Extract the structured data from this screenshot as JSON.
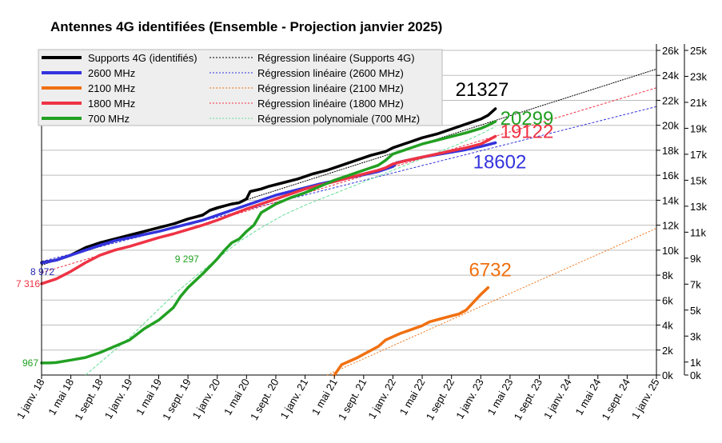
{
  "chart_data": {
    "type": "line",
    "title": "Antennes 4G identifiées (Ensemble - Projection janvier 2025)",
    "x_ticks": [
      "1 janv. 18",
      "1 mai 18",
      "1 sept. 18",
      "1 janv. 19",
      "1 mai 19",
      "1 sept. 19",
      "1 janv. 20",
      "1 mai 20",
      "1 sept. 20",
      "1 janv. 21",
      "1 mai 21",
      "1 sept. 21",
      "1 janv. 22",
      "1 mai 22",
      "1 sept. 22",
      "1 janv. 23",
      "1 mai 23",
      "1 sept. 23",
      "1 janv. 24",
      "1 mai 24",
      "1 sept. 24",
      "1 janv. 25"
    ],
    "xlim_months": [
      0,
      84
    ],
    "y_left": {
      "ticks": [
        "0k",
        "2k",
        "4k",
        "6k",
        "8k",
        "10k",
        "12k",
        "14k",
        "16k",
        "18k",
        "20k",
        "22k",
        "24k",
        "26k"
      ],
      "ylim": [
        0,
        26000
      ]
    },
    "y_right": {
      "ticks": [
        "0k",
        "1k",
        "3k",
        "5k",
        "7k",
        "9k",
        "11k",
        "13k",
        "15k",
        "17k",
        "19k",
        "21k",
        "23k",
        "25k"
      ],
      "ylim": [
        0,
        25000
      ]
    },
    "grid": "horizontal",
    "legend_position": "top-left",
    "colors": {
      "supports": "#000000",
      "b2600": "#3333dd",
      "b2100": "#f07010",
      "b1800": "#ee3344",
      "b700": "#22a022",
      "reg_2600": "#3333dd",
      "reg_2100": "#f07010",
      "reg_1800": "#ee3344"
    },
    "series": [
      {
        "key": "supports",
        "name": "Supports 4G (identifiés)",
        "axis": "left",
        "color": "#000000",
        "points": [
          [
            0,
            9000
          ],
          [
            2,
            9200
          ],
          [
            4,
            9600
          ],
          [
            6,
            10200
          ],
          [
            8,
            10600
          ],
          [
            10,
            10900
          ],
          [
            12,
            11200
          ],
          [
            14,
            11500
          ],
          [
            16,
            11800
          ],
          [
            18,
            12100
          ],
          [
            20,
            12500
          ],
          [
            22,
            12800
          ],
          [
            23,
            13200
          ],
          [
            24,
            13400
          ],
          [
            25,
            13550
          ],
          [
            26,
            13700
          ],
          [
            27,
            13800
          ],
          [
            28,
            14100
          ],
          [
            28.5,
            14700
          ],
          [
            30,
            14900
          ],
          [
            31,
            15100
          ],
          [
            33,
            15400
          ],
          [
            35,
            15700
          ],
          [
            37,
            16100
          ],
          [
            39,
            16400
          ],
          [
            41,
            16800
          ],
          [
            43,
            17200
          ],
          [
            45,
            17600
          ],
          [
            47,
            17900
          ],
          [
            48,
            18200
          ],
          [
            50,
            18600
          ],
          [
            52,
            19000
          ],
          [
            54,
            19300
          ],
          [
            56,
            19700
          ],
          [
            58,
            20100
          ],
          [
            60,
            20500
          ],
          [
            61,
            20800
          ],
          [
            62,
            21327
          ]
        ]
      },
      {
        "key": "b2600",
        "name": "2600 MHz",
        "axis": "left",
        "color": "#3333dd",
        "points": [
          [
            0,
            8972
          ],
          [
            2,
            9200
          ],
          [
            4,
            9600
          ],
          [
            6,
            10000
          ],
          [
            8,
            10400
          ],
          [
            10,
            10750
          ],
          [
            12,
            11000
          ],
          [
            14,
            11250
          ],
          [
            16,
            11500
          ],
          [
            18,
            11800
          ],
          [
            20,
            12100
          ],
          [
            22,
            12400
          ],
          [
            24,
            12800
          ],
          [
            26,
            13200
          ],
          [
            28,
            13600
          ],
          [
            30,
            14000
          ],
          [
            32,
            14400
          ],
          [
            34,
            14700
          ],
          [
            36,
            15000
          ],
          [
            38,
            15300
          ],
          [
            40,
            15550
          ],
          [
            42,
            15800
          ],
          [
            44,
            16050
          ],
          [
            46,
            16300
          ],
          [
            47,
            16500
          ],
          [
            48,
            16700
          ],
          [
            48.5,
            17000
          ],
          [
            50,
            17200
          ],
          [
            52,
            17450
          ],
          [
            54,
            17650
          ],
          [
            56,
            17850
          ],
          [
            58,
            18050
          ],
          [
            60,
            18300
          ],
          [
            61,
            18450
          ],
          [
            62,
            18602
          ]
        ]
      },
      {
        "key": "b2100",
        "name": "2100 MHz",
        "axis": "right",
        "color": "#f07010",
        "points": [
          [
            40,
            0
          ],
          [
            41,
            800
          ],
          [
            43,
            1300
          ],
          [
            44,
            1600
          ],
          [
            46,
            2200
          ],
          [
            47,
            2700
          ],
          [
            49,
            3200
          ],
          [
            50,
            3400
          ],
          [
            52,
            3800
          ],
          [
            53,
            4100
          ],
          [
            55,
            4400
          ],
          [
            57,
            4700
          ],
          [
            58,
            5000
          ],
          [
            59,
            5600
          ],
          [
            60,
            6200
          ],
          [
            61,
            6732
          ]
        ]
      },
      {
        "key": "b1800",
        "name": "1800 MHz",
        "axis": "left",
        "color": "#ee3344",
        "points": [
          [
            0,
            7316
          ],
          [
            2,
            7700
          ],
          [
            4,
            8300
          ],
          [
            6,
            9000
          ],
          [
            8,
            9600
          ],
          [
            10,
            10000
          ],
          [
            12,
            10300
          ],
          [
            14,
            10650
          ],
          [
            16,
            11000
          ],
          [
            18,
            11300
          ],
          [
            20,
            11650
          ],
          [
            22,
            12000
          ],
          [
            24,
            12400
          ],
          [
            26,
            12850
          ],
          [
            28,
            13300
          ],
          [
            30,
            13700
          ],
          [
            32,
            14100
          ],
          [
            34,
            14500
          ],
          [
            36,
            14900
          ],
          [
            38,
            15200
          ],
          [
            40,
            15500
          ],
          [
            42,
            15800
          ],
          [
            44,
            16100
          ],
          [
            46,
            16400
          ],
          [
            47,
            16600
          ],
          [
            48,
            16900
          ],
          [
            50,
            17200
          ],
          [
            52,
            17450
          ],
          [
            54,
            17700
          ],
          [
            56,
            17950
          ],
          [
            58,
            18200
          ],
          [
            60,
            18500
          ],
          [
            61,
            18800
          ],
          [
            62,
            19122
          ]
        ]
      },
      {
        "key": "b700",
        "name": "700 MHz",
        "axis": "left",
        "color": "#22a022",
        "points": [
          [
            0,
            967
          ],
          [
            1,
            967
          ],
          [
            2,
            1000
          ],
          [
            4,
            1200
          ],
          [
            6,
            1400
          ],
          [
            8,
            1800
          ],
          [
            10,
            2300
          ],
          [
            12,
            2800
          ],
          [
            14,
            3700
          ],
          [
            16,
            4400
          ],
          [
            18,
            5400
          ],
          [
            19,
            6300
          ],
          [
            20,
            7000
          ],
          [
            22,
            8100
          ],
          [
            23,
            8700
          ],
          [
            24,
            9297
          ],
          [
            25,
            10000
          ],
          [
            26,
            10600
          ],
          [
            27,
            10900
          ],
          [
            28,
            11500
          ],
          [
            29,
            12000
          ],
          [
            30,
            13000
          ],
          [
            32,
            13700
          ],
          [
            34,
            14200
          ],
          [
            36,
            14600
          ],
          [
            38,
            15100
          ],
          [
            40,
            15600
          ],
          [
            42,
            16000
          ],
          [
            44,
            16400
          ],
          [
            46,
            16800
          ],
          [
            47,
            17200
          ],
          [
            48,
            17700
          ],
          [
            50,
            18100
          ],
          [
            52,
            18500
          ],
          [
            54,
            18800
          ],
          [
            56,
            19100
          ],
          [
            58,
            19400
          ],
          [
            60,
            19750
          ],
          [
            61,
            20000
          ],
          [
            62,
            20299
          ]
        ]
      }
    ],
    "regressions": [
      {
        "key": "reg_supports",
        "name": "Régression linéaire (Supports 4G)",
        "axis": "left",
        "color": "#000000",
        "dash": "2,1",
        "points": [
          [
            0,
            8800
          ],
          [
            84,
            24500
          ]
        ]
      },
      {
        "key": "reg_2600",
        "name": "Régression linéaire (2600 MHz)",
        "axis": "left",
        "color": "#3333dd",
        "dash": "3,2",
        "points": [
          [
            0,
            9100
          ],
          [
            84,
            21500
          ]
        ]
      },
      {
        "key": "reg_2100",
        "name": "Régression linéaire (2100 MHz)",
        "axis": "right",
        "color": "#f07010",
        "dash": "2,2",
        "points": [
          [
            39,
            0
          ],
          [
            84,
            11300
          ]
        ]
      },
      {
        "key": "reg_1800",
        "name": "Régression linéaire (1800 MHz)",
        "axis": "left",
        "color": "#ee3344",
        "dash": "3,2",
        "points": [
          [
            0,
            8200
          ],
          [
            84,
            23000
          ]
        ]
      },
      {
        "key": "reg_700",
        "name": "Régression polynomiale (700 MHz)",
        "axis": "left",
        "color": "#66dd99",
        "dash": "4,2",
        "points": [
          [
            6,
            0
          ],
          [
            9,
            1500
          ],
          [
            12,
            3000
          ],
          [
            15,
            4700
          ],
          [
            18,
            6400
          ],
          [
            21,
            7900
          ],
          [
            24,
            9300
          ],
          [
            27,
            10700
          ],
          [
            30,
            11800
          ],
          [
            33,
            12800
          ],
          [
            36,
            13600
          ],
          [
            39,
            14300
          ],
          [
            42,
            15000
          ],
          [
            45,
            15700
          ],
          [
            48,
            16400
          ],
          [
            51,
            17100
          ],
          [
            54,
            17800
          ],
          [
            57,
            18500
          ],
          [
            60,
            19300
          ],
          [
            62,
            19900
          ]
        ]
      }
    ],
    "callouts": [
      {
        "text": "21327",
        "color": "#000000",
        "series": "supports"
      },
      {
        "text": "20299",
        "color": "#22a022",
        "series": "b700"
      },
      {
        "text": "19122",
        "color": "#ee3344",
        "series": "b1800"
      },
      {
        "text": "18602",
        "color": "#3333dd",
        "series": "b2600"
      },
      {
        "text": "6732",
        "color": "#f07010",
        "series": "b2100"
      }
    ],
    "start_labels": [
      {
        "text": "8 972",
        "color": "#2222aa",
        "series": "b2600"
      },
      {
        "text": "7 316",
        "color": "#ee3344",
        "series": "b1800"
      },
      {
        "text": "9 297",
        "color": "#22a022",
        "series": "b700"
      },
      {
        "text": "967",
        "color": "#22a022",
        "series": "b700"
      }
    ],
    "legend": [
      {
        "label": "Supports 4G (identifiés)",
        "color": "#000000",
        "style": "solid"
      },
      {
        "label": "2600 MHz",
        "color": "#3333dd",
        "style": "solid"
      },
      {
        "label": "2100 MHz",
        "color": "#f07010",
        "style": "solid"
      },
      {
        "label": "1800 MHz",
        "color": "#ee3344",
        "style": "solid"
      },
      {
        "label": "700 MHz",
        "color": "#22a022",
        "style": "solid"
      },
      {
        "label": "Régression linéaire (Supports 4G)",
        "color": "#000000",
        "style": "dotted"
      },
      {
        "label": "Régression linéaire (2600 MHz)",
        "color": "#3333dd",
        "style": "dotted"
      },
      {
        "label": "Régression linéaire (2100 MHz)",
        "color": "#f07010",
        "style": "dotted"
      },
      {
        "label": "Régression linéaire (1800 MHz)",
        "color": "#ee3344",
        "style": "dotted"
      },
      {
        "label": "Régression polynomiale (700 MHz)",
        "color": "#66dd99",
        "style": "dotted"
      }
    ]
  }
}
